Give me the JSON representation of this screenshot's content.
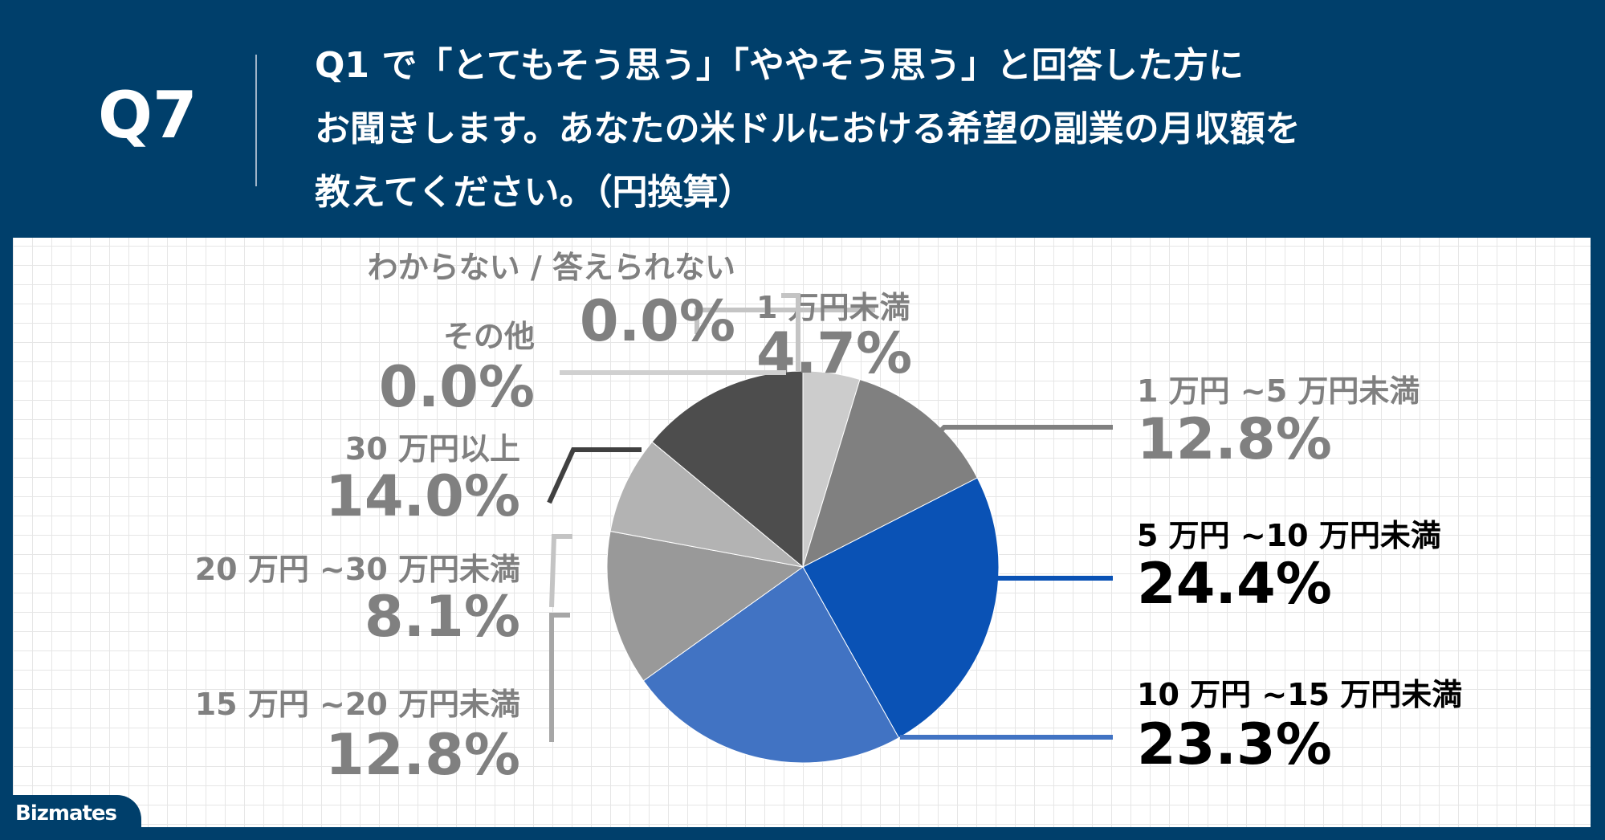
{
  "header": {
    "qnum": "Q7",
    "question_lines": [
      "Q1 で「とてもそう思う」「ややそう思う」と回答した方に",
      "お聞きします。あなたの米ドルにおける希望の副業の月収額を",
      "教えてください。（円換算）"
    ]
  },
  "logo": {
    "text": "Bizmates"
  },
  "chart_data": {
    "type": "pie",
    "unit": "%",
    "slices": [
      {
        "label": "1 万円未満",
        "value": 4.7,
        "value_label": "4.7%",
        "color": "#cccccc",
        "text_color": "#808080"
      },
      {
        "label": "1 万円 ~5 万円未満",
        "value": 12.8,
        "value_label": "12.8%",
        "color": "#808080",
        "text_color": "#808080"
      },
      {
        "label": "5 万円 ~10 万円未満",
        "value": 24.4,
        "value_label": "24.4%",
        "color": "#0a52b5",
        "text_color": "#000000"
      },
      {
        "label": "10 万円 ~15 万円未満",
        "value": 23.3,
        "value_label": "23.3%",
        "color": "#4173c3",
        "text_color": "#000000"
      },
      {
        "label": "15 万円 ~20 万円未満",
        "value": 12.8,
        "value_label": "12.8%",
        "color": "#999999",
        "text_color": "#808080"
      },
      {
        "label": "20 万円 ~30 万円未満",
        "value": 8.1,
        "value_label": "8.1%",
        "color": "#b3b3b3",
        "text_color": "#808080"
      },
      {
        "label": "30 万円以上",
        "value": 14.0,
        "value_label": "14.0%",
        "color": "#4d4d4d",
        "text_color": "#808080"
      },
      {
        "label": "その他",
        "value": 0.0,
        "value_label": "0.0%",
        "color": "#e6e6e6",
        "text_color": "#808080"
      },
      {
        "label": "わからない / 答えられない",
        "value": 0.0,
        "value_label": "0.0%",
        "color": "#bfbfbf",
        "text_color": "#808080"
      }
    ]
  }
}
